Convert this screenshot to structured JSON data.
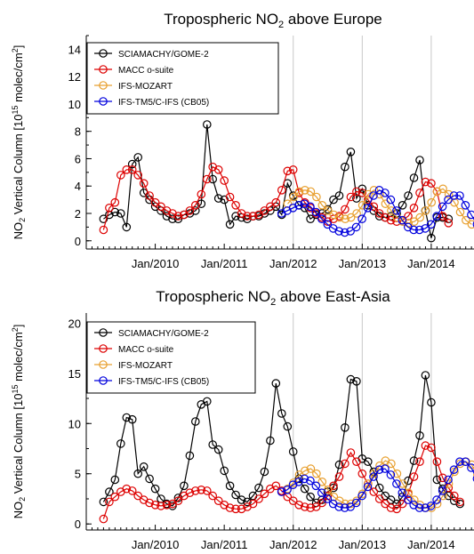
{
  "chart_data": [
    {
      "type": "line",
      "title_main": "Tropospheric NO",
      "title_sub": "2",
      "title_rest": " above Europe",
      "ylabel_pre": "NO",
      "ylabel_sub": "2",
      "ylabel_mid": " Vertical Column [10",
      "ylabel_sup": "15",
      "ylabel_post": " molec/cm",
      "ylabel_sup2": "2",
      "ylabel_end": "]",
      "xlim": [
        2009.0,
        2014.62
      ],
      "ylim": [
        -0.6,
        15.0
      ],
      "yticks": [
        0,
        2,
        4,
        6,
        8,
        10,
        12,
        14
      ],
      "xticks": [
        {
          "x": 2010.0,
          "label": "Jan/2010"
        },
        {
          "x": 2011.0,
          "label": "Jan/2011"
        },
        {
          "x": 2012.0,
          "label": "Jan/2012"
        },
        {
          "x": 2013.0,
          "label": "Jan/2013"
        },
        {
          "x": 2014.0,
          "label": "Jan/2014"
        }
      ],
      "grid_x": [
        2012.0,
        2013.0,
        2014.0
      ],
      "legend_position": "top-left",
      "series": [
        {
          "name": "SCIAMACHY/GOME-2",
          "color": "#000000",
          "x0": 2009.25,
          "values": [
            1.6,
            1.9,
            2.1,
            2.0,
            1.0,
            5.6,
            6.1,
            3.5,
            3.0,
            2.5,
            2.2,
            1.8,
            1.6,
            1.6,
            1.9,
            2.0,
            2.2,
            2.7,
            8.5,
            4.5,
            3.1,
            3.0,
            1.2,
            1.8,
            1.7,
            1.6,
            1.8,
            1.8,
            2.0,
            2.2,
            2.5,
            1.9,
            4.2,
            3.3,
            2.6,
            2.4,
            1.6,
            1.9,
            2.0,
            2.3,
            3.0,
            3.3,
            5.4,
            6.5,
            3.1,
            3.8,
            2.6,
            2.2,
            1.8,
            1.7,
            1.8,
            2.0,
            2.6,
            3.3,
            4.6,
            5.9,
            2.2,
            0.2,
            1.7,
            1.7,
            1.6
          ]
        },
        {
          "name": "MACC o-suite",
          "color": "#dd0000",
          "x0": 2009.25,
          "values": [
            0.8,
            2.4,
            2.8,
            4.8,
            5.2,
            5.2,
            4.8,
            4.2,
            3.3,
            2.8,
            2.5,
            2.2,
            2.0,
            1.8,
            1.9,
            2.2,
            2.6,
            3.4,
            4.5,
            5.4,
            5.2,
            4.4,
            3.2,
            2.6,
            2.0,
            1.8,
            1.8,
            1.9,
            2.2,
            2.5,
            2.8,
            3.7,
            5.1,
            5.2,
            3.5,
            2.8,
            2.4,
            2.0,
            1.7,
            1.4,
            1.6,
            1.8,
            2.3,
            3.2,
            3.6,
            3.5,
            3.0,
            2.5,
            2.0,
            1.7,
            1.5,
            1.4,
            1.5,
            1.8,
            2.4,
            3.5,
            4.3,
            4.2,
            3.6,
            1.8,
            1.3
          ]
        },
        {
          "name": "IFS-MOZART",
          "color": "#e8a030",
          "x0": 2011.92,
          "values": [
            2.7,
            3.2,
            3.6,
            3.7,
            3.6,
            3.2,
            2.6,
            2.2,
            1.9,
            1.7,
            1.6,
            1.7,
            2.0,
            2.6,
            3.4,
            3.7,
            3.4,
            2.7,
            2.2,
            1.7,
            1.4,
            1.3,
            1.4,
            1.7,
            2.2,
            2.8,
            3.6,
            3.8,
            3.4,
            2.8,
            2.1,
            1.5,
            1.2
          ]
        },
        {
          "name": "IFS-TM5/C-IFS (CB05)",
          "color": "#0000dd",
          "x0": 2011.83,
          "values": [
            2.0,
            2.2,
            2.4,
            2.6,
            2.7,
            2.5,
            2.1,
            1.6,
            1.2,
            0.9,
            0.7,
            0.6,
            0.7,
            1.0,
            1.6,
            2.4,
            3.3,
            3.7,
            3.5,
            3.0,
            2.2,
            1.5,
            1.0,
            0.8,
            0.8,
            0.9,
            1.2,
            1.8,
            2.5,
            3.0,
            3.3,
            3.3,
            2.6,
            1.9,
            1.2,
            0.9,
            0.8
          ]
        }
      ]
    },
    {
      "type": "line",
      "title_main": "Tropospheric NO",
      "title_sub": "2",
      "title_rest": " above East-Asia",
      "ylabel_pre": "NO",
      "ylabel_sub": "2",
      "ylabel_mid": " Vertical Column [10",
      "ylabel_sup": "15",
      "ylabel_post": " molec/cm",
      "ylabel_sup2": "2",
      "ylabel_end": "]",
      "xlim": [
        2009.0,
        2014.62
      ],
      "ylim": [
        -0.6,
        21.0
      ],
      "yticks": [
        0,
        5,
        10,
        15,
        20
      ],
      "xticks": [
        {
          "x": 2010.0,
          "label": "Jan/2010"
        },
        {
          "x": 2011.0,
          "label": "Jan/2011"
        },
        {
          "x": 2012.0,
          "label": "Jan/2012"
        },
        {
          "x": 2013.0,
          "label": "Jan/2013"
        },
        {
          "x": 2014.0,
          "label": "Jan/2014"
        }
      ],
      "grid_x": [
        2012.0,
        2013.0,
        2014.0
      ],
      "legend_position": "top-left",
      "series": [
        {
          "name": "SCIAMACHY/GOME-2",
          "color": "#000000",
          "x0": 2009.25,
          "values": [
            2.2,
            3.2,
            4.4,
            8.0,
            10.6,
            10.4,
            5.0,
            5.7,
            4.5,
            3.5,
            2.5,
            2.0,
            1.8,
            2.6,
            3.8,
            6.8,
            10.2,
            11.9,
            12.2,
            7.9,
            7.4,
            5.3,
            3.8,
            2.9,
            2.4,
            2.2,
            2.8,
            3.6,
            5.2,
            8.3,
            14.0,
            11.0,
            9.7,
            7.2,
            4.5,
            3.5,
            2.7,
            2.1,
            2.4,
            3.2,
            3.6,
            5.9,
            9.6,
            14.4,
            14.2,
            6.5,
            6.2,
            5.2,
            3.6,
            2.8,
            2.4,
            2.0,
            2.7,
            4.3,
            6.3,
            8.8,
            14.8,
            12.1,
            4.4,
            3.5,
            2.8,
            2.3,
            2.0
          ]
        },
        {
          "name": "MACC o-suite",
          "color": "#dd0000",
          "x0": 2009.25,
          "values": [
            0.5,
            2.2,
            2.7,
            3.2,
            3.5,
            3.3,
            2.8,
            2.4,
            2.1,
            1.9,
            1.8,
            1.9,
            2.0,
            2.3,
            2.8,
            3.1,
            3.3,
            3.4,
            3.3,
            2.8,
            2.3,
            1.9,
            1.6,
            1.5,
            1.5,
            1.7,
            2.0,
            2.5,
            3.0,
            3.5,
            3.8,
            3.3,
            2.7,
            2.3,
            1.9,
            1.7,
            1.6,
            1.7,
            2.1,
            2.8,
            3.8,
            4.7,
            6.0,
            7.1,
            6.2,
            5.0,
            4.0,
            3.2,
            2.5,
            2.0,
            1.6,
            1.5,
            2.0,
            3.0,
            4.7,
            6.2,
            7.8,
            7.6,
            6.2,
            4.6,
            3.6,
            2.8,
            2.2
          ]
        },
        {
          "name": "IFS-MOZART",
          "color": "#e8a030",
          "x0": 2011.92,
          "values": [
            3.5,
            4.1,
            4.9,
            5.3,
            5.5,
            5.0,
            4.2,
            3.4,
            2.7,
            2.3,
            2.0,
            2.0,
            2.3,
            3.0,
            4.0,
            5.0,
            5.8,
            6.3,
            6.0,
            5.0,
            4.0,
            3.1,
            2.4,
            1.9,
            1.6,
            1.6,
            2.0,
            2.8,
            4.0,
            5.2,
            6.0,
            6.2,
            5.9,
            4.9,
            3.8,
            2.9,
            2.2,
            1.8,
            1.5
          ]
        },
        {
          "name": "IFS-TM5/C-IFS (CB05)",
          "color": "#0000dd",
          "x0": 2011.83,
          "values": [
            3.2,
            3.4,
            3.9,
            4.2,
            4.5,
            4.3,
            3.8,
            3.1,
            2.5,
            2.0,
            1.7,
            1.6,
            1.7,
            2.1,
            2.8,
            3.7,
            4.7,
            5.4,
            5.5,
            4.9,
            4.0,
            3.1,
            2.4,
            1.9,
            1.6,
            1.6,
            1.8,
            2.4,
            3.3,
            4.4,
            5.4,
            6.2,
            6.2,
            5.6,
            4.5,
            3.4,
            2.6,
            2.0,
            1.7,
            1.7
          ]
        }
      ]
    }
  ]
}
